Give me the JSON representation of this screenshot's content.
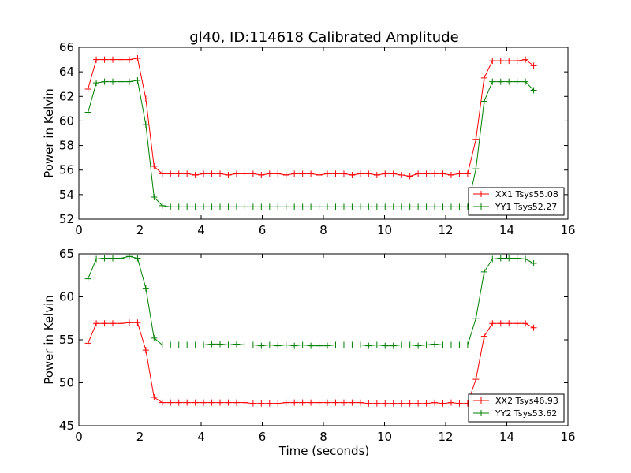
{
  "figure": {
    "title": "gl40, ID:114618 Calibrated Amplitude"
  },
  "chart_data": [
    {
      "type": "line",
      "title": "gl40, ID:114618 Calibrated Amplitude",
      "xlabel": "",
      "ylabel": "Power in Kelvin",
      "xlim": [
        0,
        16
      ],
      "ylim": [
        52,
        66
      ],
      "xticks": [
        0,
        2,
        4,
        6,
        8,
        10,
        12,
        14,
        16
      ],
      "yticks": [
        52,
        54,
        56,
        58,
        60,
        62,
        64,
        66
      ],
      "grid": false,
      "legend_position": "lower-right",
      "x": [
        0.3,
        0.57,
        0.84,
        1.11,
        1.38,
        1.65,
        1.92,
        2.19,
        2.46,
        2.73,
        3.0,
        3.27,
        3.54,
        3.81,
        4.08,
        4.35,
        4.62,
        4.89,
        5.16,
        5.43,
        5.7,
        5.97,
        6.24,
        6.51,
        6.78,
        7.05,
        7.32,
        7.59,
        7.86,
        8.13,
        8.4,
        8.67,
        8.94,
        9.21,
        9.48,
        9.75,
        10.02,
        10.29,
        10.56,
        10.83,
        11.1,
        11.37,
        11.64,
        11.91,
        12.18,
        12.45,
        12.72,
        12.99,
        13.26,
        13.53,
        13.8,
        14.07,
        14.34,
        14.61,
        14.88
      ],
      "series": [
        {
          "name": "XX1 Tsys55.08",
          "color": "#ff0000",
          "values": [
            62.6,
            65.0,
            65.0,
            65.0,
            65.0,
            65.0,
            65.1,
            61.8,
            56.3,
            55.7,
            55.7,
            55.7,
            55.7,
            55.6,
            55.7,
            55.7,
            55.7,
            55.6,
            55.7,
            55.7,
            55.7,
            55.6,
            55.7,
            55.7,
            55.6,
            55.7,
            55.7,
            55.7,
            55.6,
            55.7,
            55.7,
            55.7,
            55.6,
            55.7,
            55.7,
            55.6,
            55.7,
            55.7,
            55.6,
            55.5,
            55.7,
            55.7,
            55.7,
            55.7,
            55.6,
            55.7,
            55.7,
            58.5,
            63.5,
            64.9,
            64.9,
            64.9,
            64.9,
            65.0,
            64.5
          ]
        },
        {
          "name": "YY1 Tsys52.27",
          "color": "#008000",
          "values": [
            60.7,
            63.1,
            63.2,
            63.2,
            63.2,
            63.2,
            63.3,
            59.7,
            53.8,
            53.1,
            53.0,
            53.0,
            53.0,
            53.0,
            53.0,
            53.0,
            53.0,
            53.0,
            53.0,
            53.0,
            53.0,
            53.0,
            53.0,
            53.0,
            53.0,
            53.0,
            53.0,
            53.0,
            53.0,
            53.0,
            53.0,
            53.0,
            53.0,
            53.0,
            53.0,
            53.0,
            53.0,
            53.0,
            53.0,
            53.0,
            53.0,
            53.0,
            53.0,
            53.0,
            53.0,
            53.0,
            53.0,
            56.1,
            61.6,
            63.2,
            63.2,
            63.2,
            63.2,
            63.2,
            62.5
          ]
        }
      ]
    },
    {
      "type": "line",
      "title": "",
      "xlabel": "Time (seconds)",
      "ylabel": "Power in Kelvin",
      "xlim": [
        0,
        16
      ],
      "ylim": [
        45,
        65
      ],
      "xticks": [
        0,
        2,
        4,
        6,
        8,
        10,
        12,
        14,
        16
      ],
      "yticks": [
        45,
        50,
        55,
        60,
        65
      ],
      "grid": false,
      "legend_position": "lower-right",
      "x": [
        0.3,
        0.57,
        0.84,
        1.11,
        1.38,
        1.65,
        1.92,
        2.19,
        2.46,
        2.73,
        3.0,
        3.27,
        3.54,
        3.81,
        4.08,
        4.35,
        4.62,
        4.89,
        5.16,
        5.43,
        5.7,
        5.97,
        6.24,
        6.51,
        6.78,
        7.05,
        7.32,
        7.59,
        7.86,
        8.13,
        8.4,
        8.67,
        8.94,
        9.21,
        9.48,
        9.75,
        10.02,
        10.29,
        10.56,
        10.83,
        11.1,
        11.37,
        11.64,
        11.91,
        12.18,
        12.45,
        12.72,
        12.99,
        13.26,
        13.53,
        13.8,
        14.07,
        14.34,
        14.61,
        14.88
      ],
      "series": [
        {
          "name": "XX2 Tsys46.93",
          "color": "#ff0000",
          "values": [
            54.6,
            56.9,
            56.9,
            56.9,
            56.9,
            57.0,
            57.0,
            53.8,
            48.3,
            47.7,
            47.7,
            47.7,
            47.7,
            47.7,
            47.7,
            47.7,
            47.7,
            47.7,
            47.7,
            47.7,
            47.6,
            47.6,
            47.6,
            47.6,
            47.7,
            47.7,
            47.7,
            47.7,
            47.7,
            47.7,
            47.7,
            47.7,
            47.7,
            47.7,
            47.6,
            47.6,
            47.6,
            47.6,
            47.6,
            47.6,
            47.6,
            47.6,
            47.7,
            47.6,
            47.7,
            47.6,
            47.6,
            50.4,
            55.4,
            56.9,
            56.9,
            56.9,
            56.9,
            56.9,
            56.4
          ]
        },
        {
          "name": "YY2 Tsys53.62",
          "color": "#008000",
          "values": [
            62.1,
            64.4,
            64.5,
            64.5,
            64.5,
            64.7,
            64.5,
            61.0,
            55.2,
            54.4,
            54.4,
            54.4,
            54.4,
            54.4,
            54.4,
            54.5,
            54.5,
            54.4,
            54.5,
            54.4,
            54.4,
            54.3,
            54.4,
            54.3,
            54.4,
            54.3,
            54.4,
            54.3,
            54.3,
            54.3,
            54.4,
            54.4,
            54.4,
            54.4,
            54.3,
            54.4,
            54.3,
            54.3,
            54.4,
            54.4,
            54.3,
            54.4,
            54.5,
            54.4,
            54.4,
            54.4,
            54.4,
            57.5,
            62.9,
            64.4,
            64.5,
            64.5,
            64.5,
            64.4,
            63.9
          ]
        }
      ]
    }
  ]
}
